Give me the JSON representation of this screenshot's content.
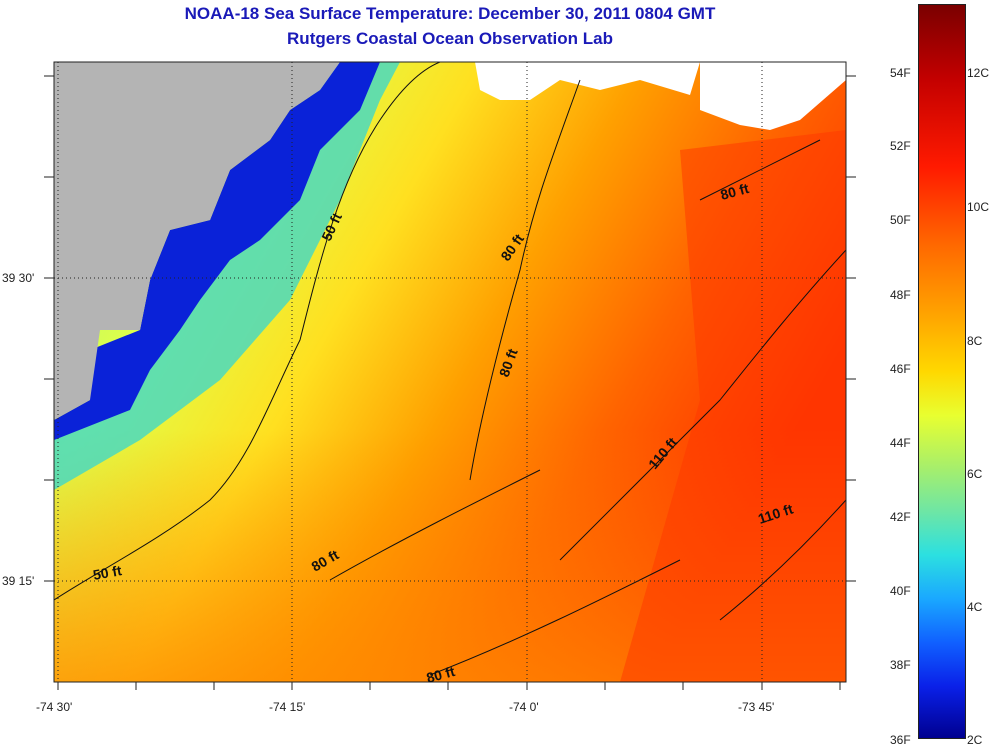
{
  "title": {
    "line1": "NOAA-18 Sea Surface Temperature:  December 30, 2011 0804 GMT",
    "line2": "Rutgers Coastal Ocean Observation Lab"
  },
  "axes": {
    "x_ticks": [
      "-74 30'",
      "-74 15'",
      "-74 0'",
      "-73 45'"
    ],
    "y_ticks": [
      "39 30'",
      "39 15'"
    ]
  },
  "contour_labels": [
    "50 ft",
    "80 ft",
    "80 ft",
    "80 ft",
    "110 ft",
    "110 ft",
    "80 ft",
    "50 ft",
    "80 ft"
  ],
  "colorbar": {
    "fahrenheit": [
      "54F",
      "52F",
      "50F",
      "48F",
      "46F",
      "44F",
      "42F",
      "40F",
      "38F",
      "36F"
    ],
    "celsius": [
      "12C",
      "10C",
      "8C",
      "6C",
      "4C",
      "2C"
    ]
  },
  "colors": {
    "title": "#1a1ab8",
    "land": "#b4b4b4",
    "cloud": "#ffffff",
    "contour": "#111111"
  }
}
